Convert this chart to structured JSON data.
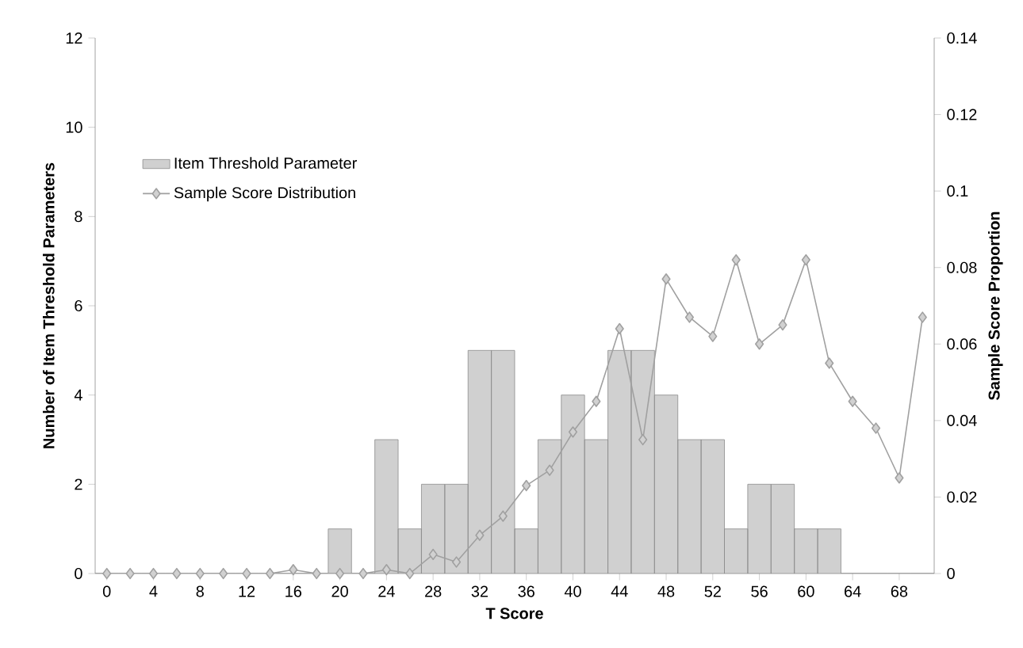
{
  "chart_data": {
    "type": "bar",
    "xlabel": "T Score",
    "ylabel": "Number of Item Threshold Parameters",
    "y2label": "Sample Score Proportion",
    "x": [
      0,
      2,
      4,
      6,
      8,
      10,
      12,
      14,
      16,
      18,
      20,
      22,
      24,
      26,
      28,
      30,
      32,
      34,
      36,
      38,
      40,
      42,
      44,
      46,
      48,
      50,
      52,
      54,
      56,
      58,
      60,
      62,
      64,
      66,
      68,
      70
    ],
    "series": [
      {
        "name": "Item Threshold Parameter",
        "color": "#d0d0d0",
        "values": [
          0,
          0,
          0,
          0,
          0,
          0,
          0,
          0,
          0,
          0,
          1,
          0,
          3,
          1,
          2,
          2,
          5,
          5,
          1,
          3,
          4,
          3,
          5,
          5,
          4,
          3,
          3,
          1,
          2,
          2,
          1,
          1,
          0,
          0,
          0,
          0
        ]
      },
      {
        "name": "Sample Score Distribution",
        "type": "line",
        "axis": "y2",
        "color": "#a0a0a0",
        "values": [
          0,
          0,
          0,
          0,
          0,
          0,
          0,
          0,
          0.001,
          0,
          0,
          0,
          0.001,
          0,
          0.005,
          0.003,
          0.01,
          0.015,
          0.023,
          0.027,
          0.037,
          0.045,
          0.064,
          0.035,
          0.077,
          0.067,
          0.062,
          0.082,
          0.06,
          0.065,
          0.082,
          0.055,
          0.045,
          0.038,
          0.025,
          0.067
        ]
      }
    ],
    "xlim": [
      -1,
      71
    ],
    "xticks": [
      0,
      4,
      8,
      12,
      16,
      20,
      24,
      28,
      32,
      36,
      40,
      44,
      48,
      52,
      56,
      60,
      64,
      68
    ],
    "ylim": [
      0,
      12
    ],
    "yticks": [
      0,
      2,
      4,
      6,
      8,
      10,
      12
    ],
    "y2lim": [
      0,
      0.14
    ],
    "y2ticks": [
      0,
      0.02,
      0.04,
      0.06,
      0.08,
      0.1,
      0.12,
      0.14
    ],
    "marker": "diamond",
    "line_style": "solid",
    "grid": false,
    "legend": "top left"
  }
}
